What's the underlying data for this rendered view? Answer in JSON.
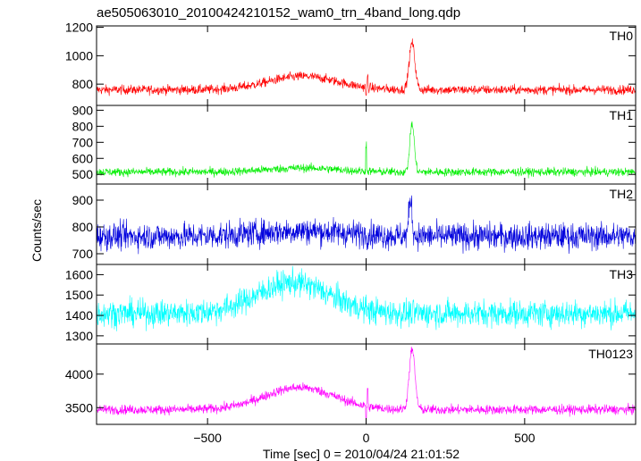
{
  "chart_data": {
    "type": "line",
    "title": "ae505063010_20100424210152_wam0_trn_4band_long.qdp",
    "xlabel": "Time [sec] 0 = 2010/04/24 21:01:52",
    "ylabel": "Counts/sec",
    "xlim": [
      -850,
      850
    ],
    "x_ticks": [
      -500,
      0,
      500
    ],
    "x_tick_labels": [
      "−500",
      "0",
      "500"
    ],
    "grid": false,
    "panels": [
      {
        "name": "TH0",
        "color": "#ff0000",
        "ylim": [
          650,
          1210
        ],
        "y_ticks": [
          800,
          1000,
          1200
        ],
        "y_tick_labels": [
          "800",
          "1000",
          "1200"
        ],
        "baseline": 760,
        "noise": 28,
        "features": [
          {
            "type": "hump",
            "center": -200,
            "width": 110,
            "amp": 95
          },
          {
            "type": "dip",
            "at": 0,
            "amp": -60
          },
          {
            "type": "spike",
            "at": 5,
            "amp": 80
          },
          {
            "type": "peak",
            "center": 145,
            "width": 9,
            "amp": 330
          }
        ]
      },
      {
        "name": "TH1",
        "color": "#00ee00",
        "ylim": [
          440,
          930
        ],
        "y_ticks": [
          500,
          600,
          700,
          800,
          900
        ],
        "y_tick_labels": [
          "500",
          "600",
          "700",
          "800",
          "900"
        ],
        "baseline": 515,
        "noise": 22,
        "features": [
          {
            "type": "hump",
            "center": -200,
            "width": 110,
            "amp": 25
          },
          {
            "type": "spike",
            "at": 0,
            "amp": 170
          },
          {
            "type": "peak",
            "center": 145,
            "width": 7,
            "amp": 300
          }
        ]
      },
      {
        "name": "TH2",
        "color": "#0000dd",
        "ylim": [
          660,
          960
        ],
        "y_ticks": [
          700,
          800,
          900
        ],
        "y_tick_labels": [
          "700",
          "800",
          "900"
        ],
        "baseline": 765,
        "noise": 42,
        "features": [
          {
            "type": "hump",
            "center": -200,
            "width": 140,
            "amp": 20
          },
          {
            "type": "peak",
            "center": 140,
            "width": 5,
            "amp": 140
          }
        ]
      },
      {
        "name": "TH3",
        "color": "#00ffff",
        "ylim": [
          1260,
          1650
        ],
        "y_ticks": [
          1300,
          1400,
          1500,
          1600
        ],
        "y_tick_labels": [
          "1300",
          "1400",
          "1500",
          "1600"
        ],
        "baseline": 1410,
        "noise": 55,
        "features": [
          {
            "type": "hump",
            "center": -230,
            "width": 115,
            "amp": 150
          }
        ]
      },
      {
        "name": "TH0123",
        "color": "#ff00ff",
        "ylim": [
          3250,
          4450
        ],
        "y_ticks": [
          3500,
          4000
        ],
        "y_tick_labels": [
          "3500",
          "4000"
        ],
        "baseline": 3470,
        "noise": 60,
        "features": [
          {
            "type": "hump",
            "center": -210,
            "width": 110,
            "amp": 330
          },
          {
            "type": "dip",
            "at": 0,
            "amp": -180
          },
          {
            "type": "spike",
            "at": 5,
            "amp": 250
          },
          {
            "type": "peak",
            "center": 145,
            "width": 9,
            "amp": 900
          }
        ]
      }
    ]
  }
}
